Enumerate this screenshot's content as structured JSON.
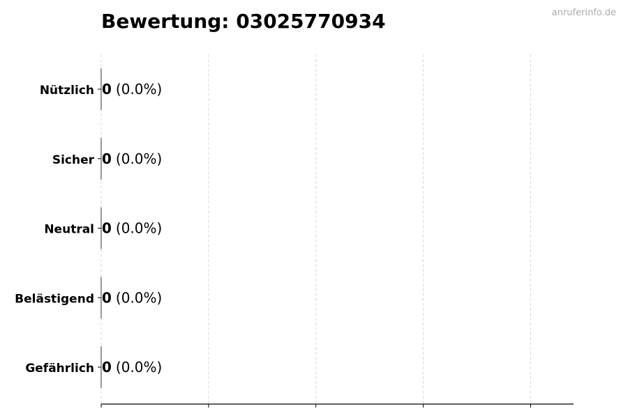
{
  "watermark": "anruferinfo.de",
  "chart_data": {
    "type": "bar",
    "orientation": "horizontal",
    "title": "Bewertung: 03025770934",
    "xlabel": "",
    "ylabel": "",
    "categories": [
      "Nützlich",
      "Sicher",
      "Neutral",
      "Belästigend",
      "Gefährlich"
    ],
    "values": [
      0,
      0,
      0,
      0,
      0
    ],
    "value_labels": [
      {
        "count": "0",
        "percent": "(0.0%)"
      },
      {
        "count": "0",
        "percent": "(0.0%)"
      },
      {
        "count": "0",
        "percent": "(0.0%)"
      },
      {
        "count": "0",
        "percent": "(0.0%)"
      },
      {
        "count": "0",
        "percent": "(0.0%)"
      }
    ],
    "xlim": [
      0,
      4.4
    ],
    "xticks": [
      0,
      1,
      2,
      3,
      4
    ],
    "xtick_labels_shown": false,
    "grid": "x-dashed",
    "colors": {
      "bar_edge": "#333333",
      "grid": "#d9d9d9",
      "axis": "#000000"
    }
  }
}
